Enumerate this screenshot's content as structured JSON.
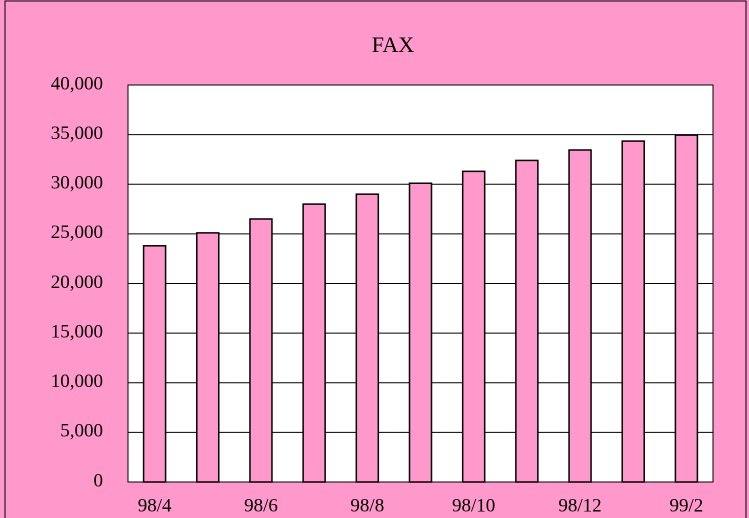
{
  "chart_data": {
    "type": "bar",
    "title": "FAX",
    "categories": [
      "98/4",
      null,
      "98/6",
      null,
      "98/8",
      null,
      "98/10",
      null,
      "98/12",
      null,
      "99/2"
    ],
    "values": [
      23800,
      25100,
      26500,
      28000,
      29000,
      30100,
      31300,
      32400,
      33450,
      34350,
      34950
    ],
    "color": "#ff99cc",
    "ylim": [
      0,
      40000
    ],
    "yticks": [
      0,
      {
        "value": 5000,
        "label": "5,000"
      },
      {
        "value": 10000,
        "label": "10,000"
      },
      {
        "value": 15000,
        "label": "15,000"
      },
      {
        "value": 20000,
        "label": "20,000"
      },
      {
        "value": 25000,
        "label": "25,000"
      },
      {
        "value": 30000,
        "label": "30,000"
      },
      {
        "value": 35000,
        "label": "35,000"
      },
      {
        "value": 40000,
        "label": "40,000"
      }
    ],
    "grid": true
  }
}
